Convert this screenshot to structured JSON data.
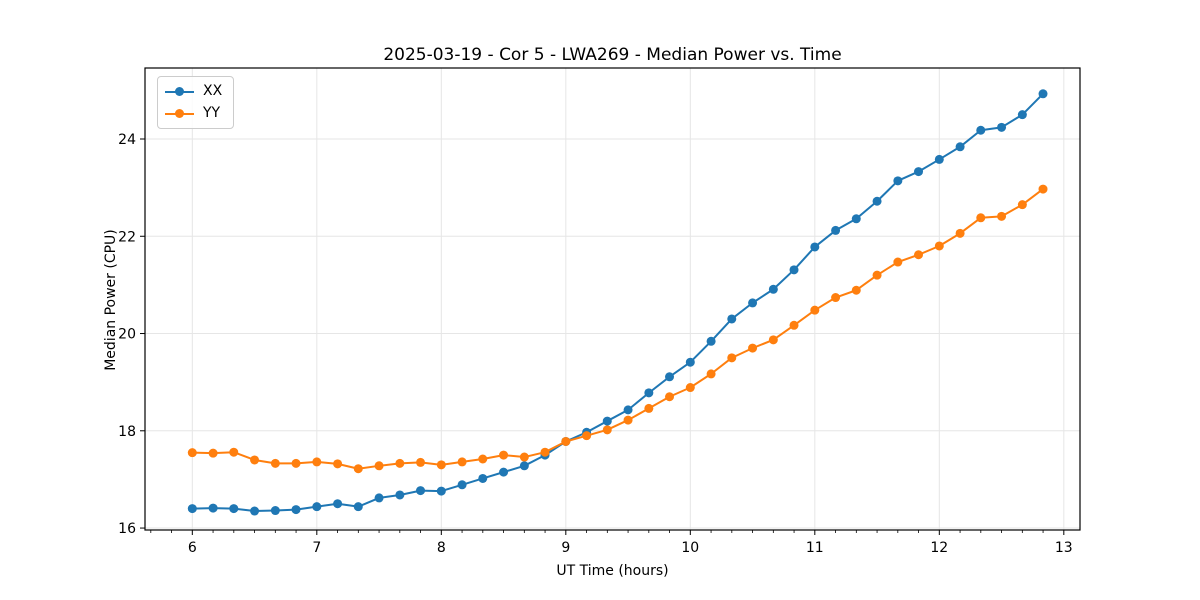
{
  "chart_data": {
    "type": "line",
    "title": "2025-03-19 - Cor 5 - LWA269 - Median Power vs. Time",
    "xlabel": "UT Time (hours)",
    "ylabel": "Median Power (CPU)",
    "xlim": [
      5.62,
      13.13
    ],
    "ylim": [
      15.96,
      25.46
    ],
    "xticks": [
      6,
      7,
      8,
      9,
      10,
      11,
      12,
      13
    ],
    "yticks": [
      16,
      18,
      20,
      22,
      24
    ],
    "x_minor_tick_step": 0.166667,
    "grid": true,
    "grid_color": "#e6e6e6",
    "axis_color": "#000000",
    "legend_position": "upper-left",
    "marker": "circle",
    "x": [
      6.0,
      6.167,
      6.333,
      6.5,
      6.667,
      6.833,
      7.0,
      7.167,
      7.333,
      7.5,
      7.667,
      7.833,
      8.0,
      8.167,
      8.333,
      8.5,
      8.667,
      8.833,
      9.0,
      9.167,
      9.333,
      9.5,
      9.667,
      9.833,
      10.0,
      10.167,
      10.333,
      10.5,
      10.667,
      10.833,
      11.0,
      11.167,
      11.333,
      11.5,
      11.667,
      11.833,
      12.0,
      12.167,
      12.333,
      12.5,
      12.667,
      12.833
    ],
    "series": [
      {
        "name": "XX",
        "color": "#1f77b4",
        "values": [
          16.4,
          16.41,
          16.4,
          16.35,
          16.36,
          16.38,
          16.44,
          16.5,
          16.44,
          16.62,
          16.68,
          16.77,
          16.76,
          16.89,
          17.02,
          17.15,
          17.28,
          17.5,
          17.78,
          17.97,
          18.2,
          18.43,
          18.78,
          19.11,
          19.41,
          19.84,
          20.3,
          20.63,
          20.91,
          21.31,
          21.78,
          22.12,
          22.36,
          22.72,
          23.14,
          23.33,
          23.58,
          23.84,
          24.18,
          24.24,
          24.5,
          24.93
        ]
      },
      {
        "name": "YY",
        "color": "#ff7f0e",
        "values": [
          17.55,
          17.54,
          17.56,
          17.4,
          17.33,
          17.33,
          17.36,
          17.32,
          17.22,
          17.28,
          17.33,
          17.35,
          17.3,
          17.36,
          17.42,
          17.5,
          17.46,
          17.56,
          17.78,
          17.9,
          18.02,
          18.22,
          18.46,
          18.7,
          18.89,
          19.17,
          19.5,
          19.7,
          19.87,
          20.17,
          20.48,
          20.74,
          20.89,
          21.2,
          21.47,
          21.62,
          21.8,
          22.06,
          22.38,
          22.41,
          22.65,
          22.97
        ]
      }
    ]
  }
}
